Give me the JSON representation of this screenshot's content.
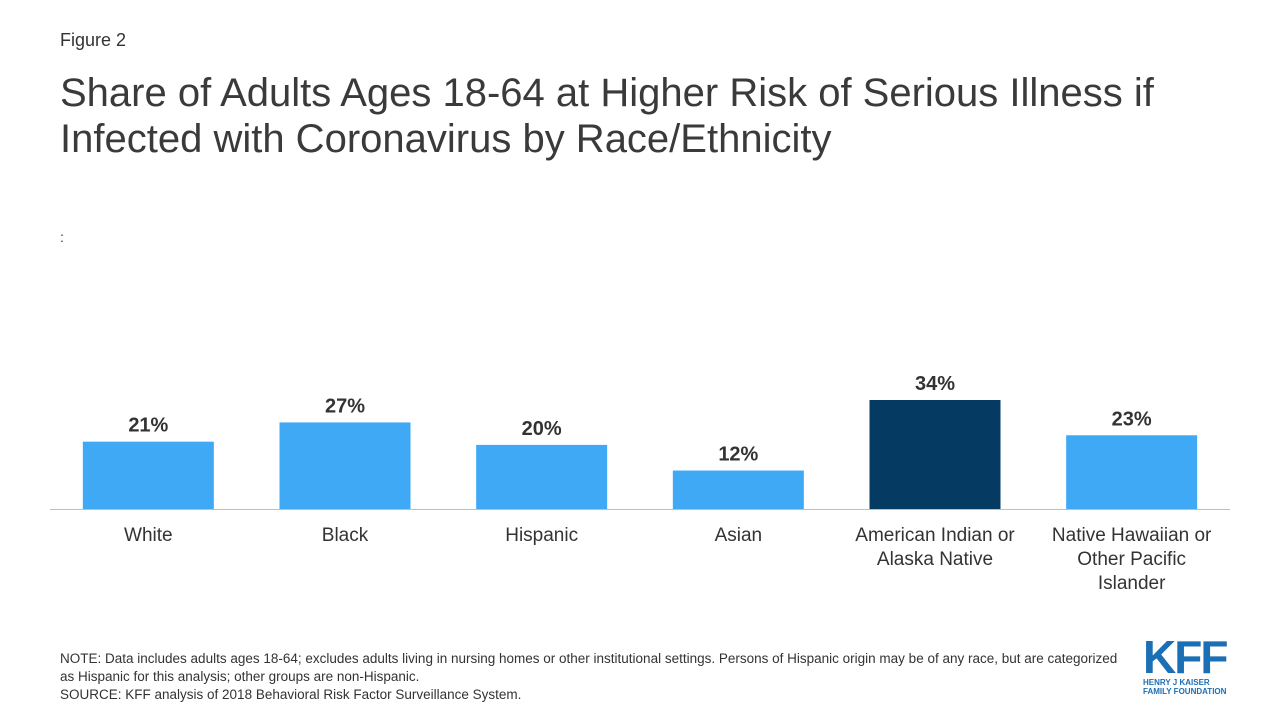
{
  "figure_label": "Figure 2",
  "title": "Share of Adults Ages 18-64 at Higher Risk of Serious Illness if Infected with Coronavirus by Race/Ethnicity",
  "subtitle": ":",
  "chart_data": {
    "type": "bar",
    "categories": [
      [
        "White"
      ],
      [
        "Black"
      ],
      [
        "Hispanic"
      ],
      [
        "Asian"
      ],
      [
        "American Indian or",
        "Alaska Native"
      ],
      [
        "Native Hawaiian or",
        "Other Pacific",
        "Islander"
      ]
    ],
    "values": [
      21,
      27,
      20,
      12,
      34,
      23
    ],
    "value_labels": [
      "21%",
      "27%",
      "20%",
      "12%",
      "34%",
      "23%"
    ],
    "highlight_index": 4,
    "ylim": [
      0,
      34
    ],
    "grid": false,
    "legend": "none",
    "colors": {
      "bar": "#3fa9f5",
      "highlight": "#053b63",
      "axis": "#bfbfbf",
      "text": "#333333"
    }
  },
  "notes": {
    "note": "NOTE: Data includes adults ages 18-64; excludes adults living in nursing homes or other institutional settings. Persons of Hispanic origin may be of any race, but are categorized as Hispanic for this analysis; other groups are non-Hispanic.",
    "source": "SOURCE: KFF analysis of 2018 Behavioral Risk Factor Surveillance System."
  },
  "logo": {
    "mark": "KFF",
    "line1": "HENRY J KAISER",
    "line2": "FAMILY FOUNDATION"
  }
}
